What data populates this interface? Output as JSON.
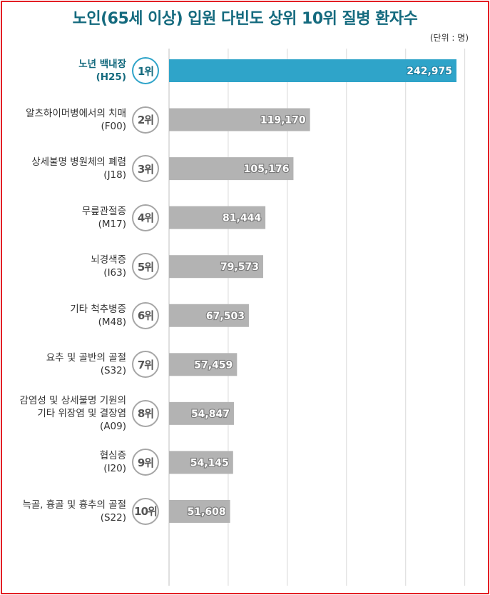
{
  "title": "노인(65세 이상) 입원 다빈도 상위 10위 질병 환자수",
  "unit_note": "(단위 : 명)",
  "colors": {
    "highlight": "#2fa4c9",
    "bar": "#b3b3b3",
    "title": "#146a7e",
    "frame": "#e32025"
  },
  "chart_data": {
    "type": "bar",
    "orientation": "horizontal",
    "title": "노인(65세 이상) 입원 다빈도 상위 10위 질병 환자수",
    "unit": "(단위 : 명)",
    "xlim": [
      0,
      250000
    ],
    "grid": true,
    "categories": [
      {
        "name": [
          "노년 백내장"
        ],
        "code": "(H25)",
        "rank": "1위",
        "value": 242975,
        "label": "242,975"
      },
      {
        "name": [
          "알츠하이머병에서의 치매"
        ],
        "code": "(F00)",
        "rank": "2위",
        "value": 119170,
        "label": "119,170"
      },
      {
        "name": [
          "상세불명 병원체의 폐렴"
        ],
        "code": "(J18)",
        "rank": "3위",
        "value": 105176,
        "label": "105,176"
      },
      {
        "name": [
          "무릎관절증"
        ],
        "code": "(M17)",
        "rank": "4위",
        "value": 81444,
        "label": "81,444"
      },
      {
        "name": [
          "뇌경색증"
        ],
        "code": "(I63)",
        "rank": "5위",
        "value": 79573,
        "label": "79,573"
      },
      {
        "name": [
          "기타 척추병증"
        ],
        "code": "(M48)",
        "rank": "6위",
        "value": 67503,
        "label": "67,503"
      },
      {
        "name": [
          "요추 및 골반의 골절"
        ],
        "code": "(S32)",
        "rank": "7위",
        "value": 57459,
        "label": "57,459"
      },
      {
        "name": [
          "감염성 및 상세불명 기원의",
          "기타 위장염 및 결장염"
        ],
        "code": "(A09)",
        "rank": "8위",
        "value": 54847,
        "label": "54,847"
      },
      {
        "name": [
          "협심증"
        ],
        "code": "(I20)",
        "rank": "9위",
        "value": 54145,
        "label": "54,145"
      },
      {
        "name": [
          "늑골, 흉골 및 흉추의 골절"
        ],
        "code": "(S22)",
        "rank": "10위",
        "value": 51608,
        "label": "51,608"
      }
    ]
  }
}
